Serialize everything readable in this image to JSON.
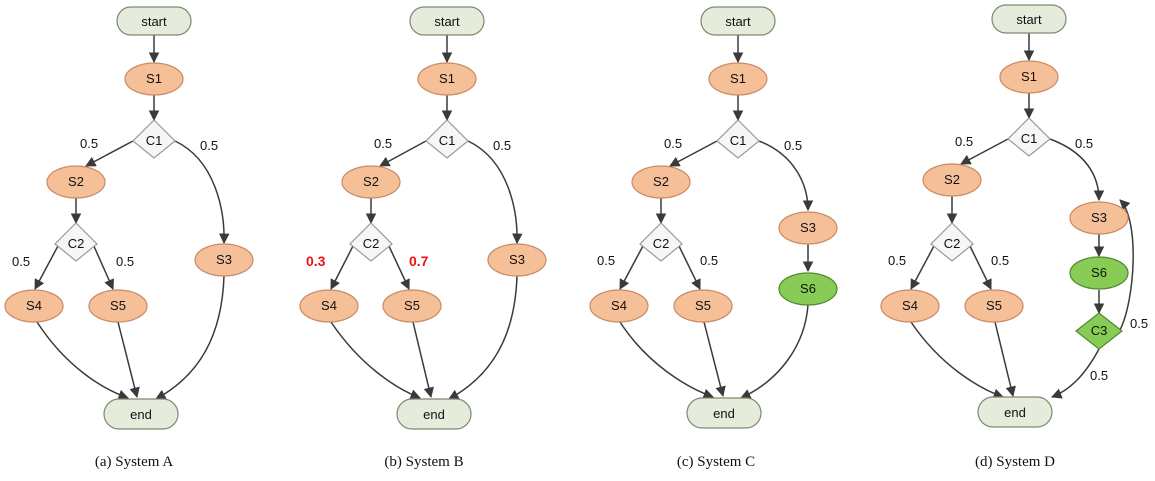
{
  "colors": {
    "terminal_fill": "#e6ecdc",
    "terminal_stroke": "#7a8a70",
    "state_fill": "#f5bf98",
    "state_stroke": "#c98a66",
    "new_state_fill": "#88cc55",
    "new_state_stroke": "#4f8a2e",
    "choice_fill": "#f6f6f6",
    "choice_stroke": "#999999",
    "highlight_text": "#ee1111"
  },
  "systems": [
    {
      "caption": "(a) System A",
      "nodes": {
        "start": "start",
        "s1": "S1",
        "c1": "C1",
        "s2": "S2",
        "c2": "C2",
        "s3": "S3",
        "s4": "S4",
        "s5": "S5",
        "end": "end"
      },
      "probs": {
        "c1_left": "0.5",
        "c1_right": "0.5",
        "c2_left": "0.5",
        "c2_right": "0.5"
      }
    },
    {
      "caption": "(b) System B",
      "nodes": {
        "start": "start",
        "s1": "S1",
        "c1": "C1",
        "s2": "S2",
        "c2": "C2",
        "s3": "S3",
        "s4": "S4",
        "s5": "S5",
        "end": "end"
      },
      "probs": {
        "c1_left": "0.5",
        "c1_right": "0.5",
        "c2_left": "0.3",
        "c2_right": "0.7"
      }
    },
    {
      "caption": "(c) System C",
      "nodes": {
        "start": "start",
        "s1": "S1",
        "c1": "C1",
        "s2": "S2",
        "c2": "C2",
        "s3": "S3",
        "s6": "S6",
        "s4": "S4",
        "s5": "S5",
        "end": "end"
      },
      "probs": {
        "c1_left": "0.5",
        "c1_right": "0.5",
        "c2_left": "0.5",
        "c2_right": "0.5"
      }
    },
    {
      "caption": "(d) System D",
      "nodes": {
        "start": "start",
        "s1": "S1",
        "c1": "C1",
        "s2": "S2",
        "c2": "C2",
        "s3": "S3",
        "s6": "S6",
        "c3": "C3",
        "s4": "S4",
        "s5": "S5",
        "end": "end"
      },
      "probs": {
        "c1_left": "0.5",
        "c1_right": "0.5",
        "c2_left": "0.5",
        "c2_right": "0.5",
        "c3_loop": "0.5",
        "c3_end": "0.5"
      }
    }
  ]
}
